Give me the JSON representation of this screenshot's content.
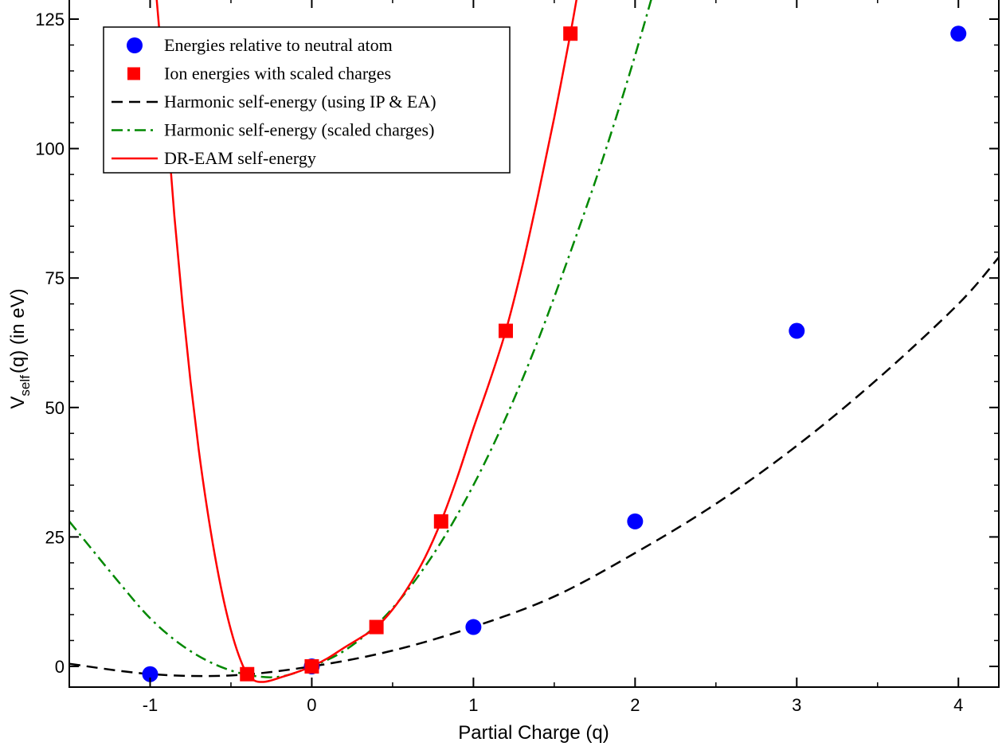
{
  "chart_data": {
    "type": "scatter",
    "title": "",
    "xlabel": "Partial Charge (q)",
    "ylabel": {
      "main": "V",
      "sub": "self",
      "rest": "(q)  (in eV)"
    },
    "xlim": [
      -1.5,
      4.25
    ],
    "ylim": [
      -4,
      129
    ],
    "xticks": [
      -1,
      0,
      1,
      2,
      3,
      4
    ],
    "xtick_labels": [
      "-1",
      "0",
      "1",
      "2",
      "3",
      "4"
    ],
    "yticks": [
      0,
      25,
      50,
      75,
      100,
      125
    ],
    "ytick_labels": [
      "0",
      "25",
      "50",
      "75",
      "100",
      "125"
    ],
    "grid": false,
    "legend_position": "top-left",
    "series": [
      {
        "name": "Energies relative to neutral atom",
        "kind": "points",
        "marker": "circle",
        "color": "#0000ff",
        "x": [
          -1,
          0,
          1,
          2,
          3,
          4
        ],
        "y": [
          -1.5,
          0,
          7.6,
          28,
          64.8,
          122.2
        ]
      },
      {
        "name": "Ion energies with scaled charges",
        "kind": "points",
        "marker": "square",
        "color": "#ff0000",
        "x": [
          -0.4,
          0,
          0.4,
          0.8,
          1.2,
          1.6
        ],
        "y": [
          -1.5,
          0,
          7.6,
          28,
          64.8,
          122.2
        ]
      },
      {
        "name": "Harmonic self-energy (using IP & EA)",
        "kind": "line",
        "style": "dashed",
        "color": "#000000",
        "x": [
          -1.5,
          -1,
          -0.5,
          0,
          0.5,
          1,
          1.5,
          2,
          2.5,
          3,
          3.5,
          4,
          4.25
        ],
        "y": [
          0.5,
          -1.48,
          -1.75,
          0,
          3.05,
          7.63,
          13.5,
          21.9,
          31.4,
          42.6,
          55.5,
          70.0,
          79.0
        ]
      },
      {
        "name": "Harmonic self-energy (scaled charges)",
        "kind": "line",
        "style": "dash-dot",
        "color": "#008800",
        "x": [
          -1.5,
          -1.2,
          -1,
          -0.8,
          -0.6,
          -0.4,
          -0.2,
          0,
          0.2,
          0.4,
          0.6,
          0.8,
          1,
          1.2,
          1.4,
          1.6,
          1.8,
          2,
          2.2,
          2.3
        ],
        "y": [
          28.0,
          16.5,
          9.3,
          4.0,
          0.4,
          -1.6,
          -2.0,
          0,
          3.0,
          8.0,
          15.0,
          24.0,
          35.0,
          48.0,
          63.0,
          80.0,
          98.0,
          118.0,
          140.0,
          152.0
        ]
      },
      {
        "name": "DR-EAM self-energy",
        "kind": "line",
        "style": "solid",
        "color": "#ff0000",
        "x": [
          -0.96,
          -0.9,
          -0.85,
          -0.8,
          -0.75,
          -0.7,
          -0.65,
          -0.6,
          -0.55,
          -0.5,
          -0.45,
          -0.4,
          -0.35,
          -0.3,
          -0.25,
          -0.2,
          -0.1,
          0,
          0.1,
          0.2,
          0.3,
          0.4,
          0.5,
          0.6,
          0.7,
          0.8,
          0.9,
          1.0,
          1.1,
          1.2,
          1.3,
          1.4,
          1.5,
          1.6,
          1.65
        ],
        "y": [
          129,
          107,
          87,
          70,
          55,
          42,
          31,
          21.5,
          13.5,
          7.0,
          2.0,
          -1.5,
          -2.8,
          -3.0,
          -2.7,
          -2.2,
          -1.2,
          0,
          1.6,
          3.6,
          5.5,
          7.6,
          11.0,
          15.5,
          21.0,
          28.0,
          36.5,
          46.0,
          55.0,
          64.8,
          77.0,
          91.0,
          106.0,
          122.2,
          131.0
        ]
      }
    ]
  }
}
